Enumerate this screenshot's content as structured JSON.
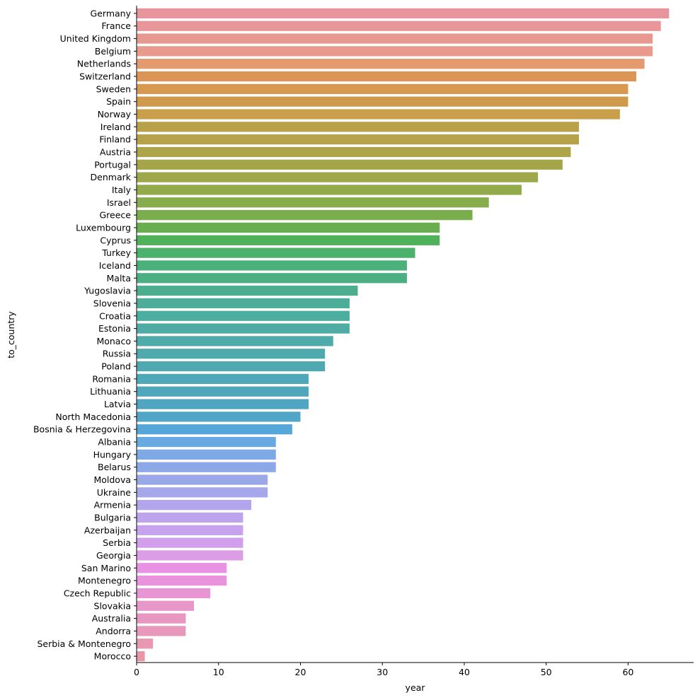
{
  "chart_data": {
    "type": "bar",
    "orientation": "horizontal",
    "xlabel": "year",
    "ylabel": "to_country",
    "xlim": [
      0,
      68
    ],
    "xticks": [
      0,
      10,
      20,
      30,
      40,
      50,
      60
    ],
    "grid": false,
    "categories": [
      "Germany",
      "France",
      "United Kingdom",
      "Belgium",
      "Netherlands",
      "Switzerland",
      "Sweden",
      "Spain",
      "Norway",
      "Ireland",
      "Finland",
      "Austria",
      "Portugal",
      "Denmark",
      "Italy",
      "Israel",
      "Greece",
      "Luxembourg",
      "Cyprus",
      "Turkey",
      "Iceland",
      "Malta",
      "Yugoslavia",
      "Slovenia",
      "Croatia",
      "Estonia",
      "Monaco",
      "Russia",
      "Poland",
      "Romania",
      "Lithuania",
      "Latvia",
      "North Macedonia",
      "Bosnia & Herzegovina",
      "Albania",
      "Hungary",
      "Belarus",
      "Moldova",
      "Ukraine",
      "Armenia",
      "Bulgaria",
      "Azerbaijan",
      "Serbia",
      "Georgia",
      "San Marino",
      "Montenegro",
      "Czech Republic",
      "Slovakia",
      "Australia",
      "Andorra",
      "Serbia & Montenegro",
      "Morocco"
    ],
    "values": [
      65,
      64,
      63,
      63,
      62,
      61,
      60,
      60,
      59,
      54,
      54,
      53,
      52,
      49,
      47,
      43,
      41,
      37,
      37,
      34,
      33,
      33,
      27,
      26,
      26,
      26,
      24,
      23,
      23,
      21,
      21,
      21,
      20,
      19,
      17,
      17,
      17,
      16,
      16,
      14,
      13,
      13,
      13,
      13,
      11,
      11,
      9,
      7,
      6,
      6,
      2,
      1
    ],
    "colors": [
      "#e8949c",
      "#e8969a",
      "#e8998f",
      "#e89b8c",
      "#e59a6e",
      "#dc9553",
      "#d7984f",
      "#cf9a4c",
      "#c99f4c",
      "#b9a04a",
      "#b5a24a",
      "#aea44a",
      "#a5a54a",
      "#9ea84a",
      "#93aa4a",
      "#87ac4c",
      "#7aad4c",
      "#68ae4e",
      "#4fb25b",
      "#4ab26a",
      "#4bb07a",
      "#4caf84",
      "#4dae8f",
      "#4dad99",
      "#4dad9f",
      "#4eaca4",
      "#4faba9",
      "#4faaad",
      "#4ea9b1",
      "#4fa8b7",
      "#4fa7bb",
      "#50a6c0",
      "#51a5c7",
      "#55a6d9",
      "#69a9e1",
      "#7ea9e4",
      "#8ca8e6",
      "#9aa8e8",
      "#a6a7ea",
      "#b2a5ec",
      "#bda4ed",
      "#c7a2ee",
      "#d29fec",
      "#dc9de7",
      "#e891e5",
      "#e893dc",
      "#e896d3",
      "#e897ca",
      "#e897c2",
      "#e899bb",
      "#e898b0",
      "#e897a8"
    ]
  }
}
